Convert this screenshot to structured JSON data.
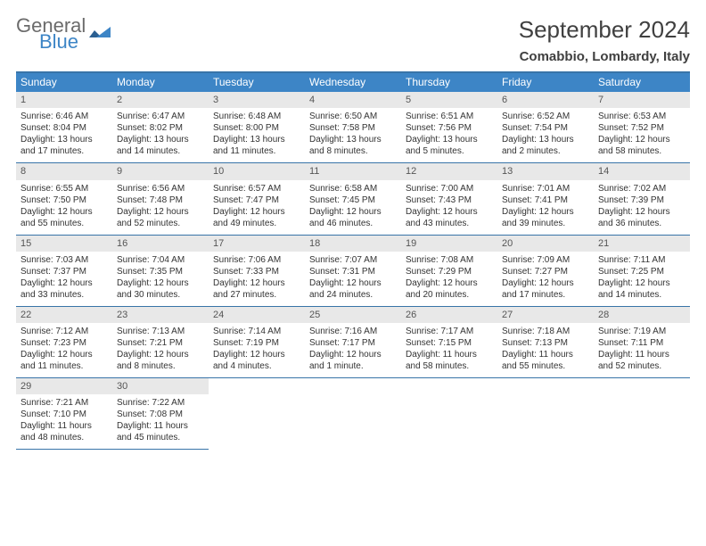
{
  "logo": {
    "word1": "General",
    "word2": "Blue",
    "brand_color": "#3d85c6"
  },
  "title": "September 2024",
  "location": "Comabbio, Lombardy, Italy",
  "colors": {
    "header_bg": "#3d85c6",
    "header_border": "#3874a8",
    "daynum_bg": "#e8e8e8",
    "text": "#333333",
    "title_text": "#404040"
  },
  "day_headers": [
    "Sunday",
    "Monday",
    "Tuesday",
    "Wednesday",
    "Thursday",
    "Friday",
    "Saturday"
  ],
  "weeks": [
    [
      {
        "n": "1",
        "sunrise": "Sunrise: 6:46 AM",
        "sunset": "Sunset: 8:04 PM",
        "daylight": "Daylight: 13 hours and 17 minutes."
      },
      {
        "n": "2",
        "sunrise": "Sunrise: 6:47 AM",
        "sunset": "Sunset: 8:02 PM",
        "daylight": "Daylight: 13 hours and 14 minutes."
      },
      {
        "n": "3",
        "sunrise": "Sunrise: 6:48 AM",
        "sunset": "Sunset: 8:00 PM",
        "daylight": "Daylight: 13 hours and 11 minutes."
      },
      {
        "n": "4",
        "sunrise": "Sunrise: 6:50 AM",
        "sunset": "Sunset: 7:58 PM",
        "daylight": "Daylight: 13 hours and 8 minutes."
      },
      {
        "n": "5",
        "sunrise": "Sunrise: 6:51 AM",
        "sunset": "Sunset: 7:56 PM",
        "daylight": "Daylight: 13 hours and 5 minutes."
      },
      {
        "n": "6",
        "sunrise": "Sunrise: 6:52 AM",
        "sunset": "Sunset: 7:54 PM",
        "daylight": "Daylight: 13 hours and 2 minutes."
      },
      {
        "n": "7",
        "sunrise": "Sunrise: 6:53 AM",
        "sunset": "Sunset: 7:52 PM",
        "daylight": "Daylight: 12 hours and 58 minutes."
      }
    ],
    [
      {
        "n": "8",
        "sunrise": "Sunrise: 6:55 AM",
        "sunset": "Sunset: 7:50 PM",
        "daylight": "Daylight: 12 hours and 55 minutes."
      },
      {
        "n": "9",
        "sunrise": "Sunrise: 6:56 AM",
        "sunset": "Sunset: 7:48 PM",
        "daylight": "Daylight: 12 hours and 52 minutes."
      },
      {
        "n": "10",
        "sunrise": "Sunrise: 6:57 AM",
        "sunset": "Sunset: 7:47 PM",
        "daylight": "Daylight: 12 hours and 49 minutes."
      },
      {
        "n": "11",
        "sunrise": "Sunrise: 6:58 AM",
        "sunset": "Sunset: 7:45 PM",
        "daylight": "Daylight: 12 hours and 46 minutes."
      },
      {
        "n": "12",
        "sunrise": "Sunrise: 7:00 AM",
        "sunset": "Sunset: 7:43 PM",
        "daylight": "Daylight: 12 hours and 43 minutes."
      },
      {
        "n": "13",
        "sunrise": "Sunrise: 7:01 AM",
        "sunset": "Sunset: 7:41 PM",
        "daylight": "Daylight: 12 hours and 39 minutes."
      },
      {
        "n": "14",
        "sunrise": "Sunrise: 7:02 AM",
        "sunset": "Sunset: 7:39 PM",
        "daylight": "Daylight: 12 hours and 36 minutes."
      }
    ],
    [
      {
        "n": "15",
        "sunrise": "Sunrise: 7:03 AM",
        "sunset": "Sunset: 7:37 PM",
        "daylight": "Daylight: 12 hours and 33 minutes."
      },
      {
        "n": "16",
        "sunrise": "Sunrise: 7:04 AM",
        "sunset": "Sunset: 7:35 PM",
        "daylight": "Daylight: 12 hours and 30 minutes."
      },
      {
        "n": "17",
        "sunrise": "Sunrise: 7:06 AM",
        "sunset": "Sunset: 7:33 PM",
        "daylight": "Daylight: 12 hours and 27 minutes."
      },
      {
        "n": "18",
        "sunrise": "Sunrise: 7:07 AM",
        "sunset": "Sunset: 7:31 PM",
        "daylight": "Daylight: 12 hours and 24 minutes."
      },
      {
        "n": "19",
        "sunrise": "Sunrise: 7:08 AM",
        "sunset": "Sunset: 7:29 PM",
        "daylight": "Daylight: 12 hours and 20 minutes."
      },
      {
        "n": "20",
        "sunrise": "Sunrise: 7:09 AM",
        "sunset": "Sunset: 7:27 PM",
        "daylight": "Daylight: 12 hours and 17 minutes."
      },
      {
        "n": "21",
        "sunrise": "Sunrise: 7:11 AM",
        "sunset": "Sunset: 7:25 PM",
        "daylight": "Daylight: 12 hours and 14 minutes."
      }
    ],
    [
      {
        "n": "22",
        "sunrise": "Sunrise: 7:12 AM",
        "sunset": "Sunset: 7:23 PM",
        "daylight": "Daylight: 12 hours and 11 minutes."
      },
      {
        "n": "23",
        "sunrise": "Sunrise: 7:13 AM",
        "sunset": "Sunset: 7:21 PM",
        "daylight": "Daylight: 12 hours and 8 minutes."
      },
      {
        "n": "24",
        "sunrise": "Sunrise: 7:14 AM",
        "sunset": "Sunset: 7:19 PM",
        "daylight": "Daylight: 12 hours and 4 minutes."
      },
      {
        "n": "25",
        "sunrise": "Sunrise: 7:16 AM",
        "sunset": "Sunset: 7:17 PM",
        "daylight": "Daylight: 12 hours and 1 minute."
      },
      {
        "n": "26",
        "sunrise": "Sunrise: 7:17 AM",
        "sunset": "Sunset: 7:15 PM",
        "daylight": "Daylight: 11 hours and 58 minutes."
      },
      {
        "n": "27",
        "sunrise": "Sunrise: 7:18 AM",
        "sunset": "Sunset: 7:13 PM",
        "daylight": "Daylight: 11 hours and 55 minutes."
      },
      {
        "n": "28",
        "sunrise": "Sunrise: 7:19 AM",
        "sunset": "Sunset: 7:11 PM",
        "daylight": "Daylight: 11 hours and 52 minutes."
      }
    ],
    [
      {
        "n": "29",
        "sunrise": "Sunrise: 7:21 AM",
        "sunset": "Sunset: 7:10 PM",
        "daylight": "Daylight: 11 hours and 48 minutes."
      },
      {
        "n": "30",
        "sunrise": "Sunrise: 7:22 AM",
        "sunset": "Sunset: 7:08 PM",
        "daylight": "Daylight: 11 hours and 45 minutes."
      },
      null,
      null,
      null,
      null,
      null
    ]
  ]
}
